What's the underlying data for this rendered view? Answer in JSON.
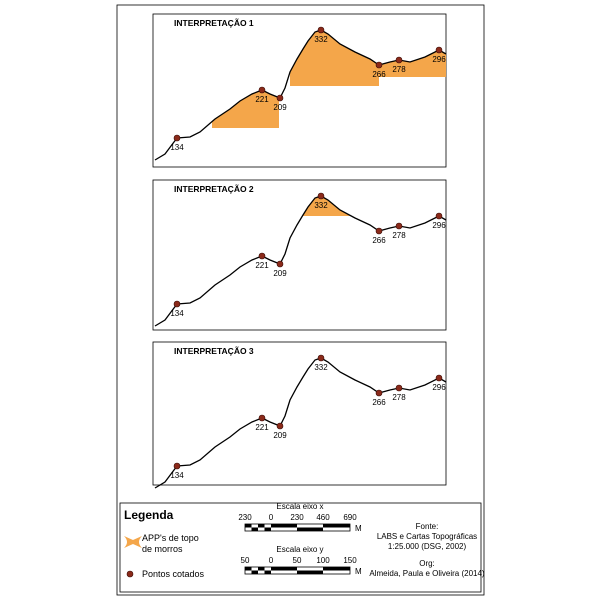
{
  "panels": [
    {
      "title": "INTERPRETAÇÃO 1",
      "points": [
        "134",
        "221",
        "209",
        "332",
        "266",
        "278",
        "296"
      ]
    },
    {
      "title": "INTERPRETAÇÃO 2",
      "points": [
        "134",
        "221",
        "209",
        "332",
        "266",
        "278",
        "296"
      ]
    },
    {
      "title": "INTERPRETAÇÃO 3",
      "points": [
        "134",
        "221",
        "209",
        "332",
        "266",
        "278",
        "296"
      ]
    }
  ],
  "legend": {
    "title": "Legenda",
    "items": [
      {
        "label": [
          "APP's de topo",
          "de morros"
        ]
      },
      {
        "label": [
          "Pontos cotados"
        ]
      }
    ],
    "scale_x": {
      "title": "Escala eixo x",
      "labels": [
        "230",
        "0",
        "230",
        "460",
        "690"
      ],
      "unit": "M"
    },
    "scale_y": {
      "title": "Escala eixo y",
      "labels": [
        "50",
        "0",
        "50",
        "100",
        "150"
      ],
      "unit": "M"
    },
    "source": [
      "Fonte:",
      "LABS e Cartas Topográficas",
      "1:25.000 (DSG, 2002)"
    ],
    "org": [
      "Org:",
      "Almeida, Paula e Oliveira (2014)"
    ]
  }
}
